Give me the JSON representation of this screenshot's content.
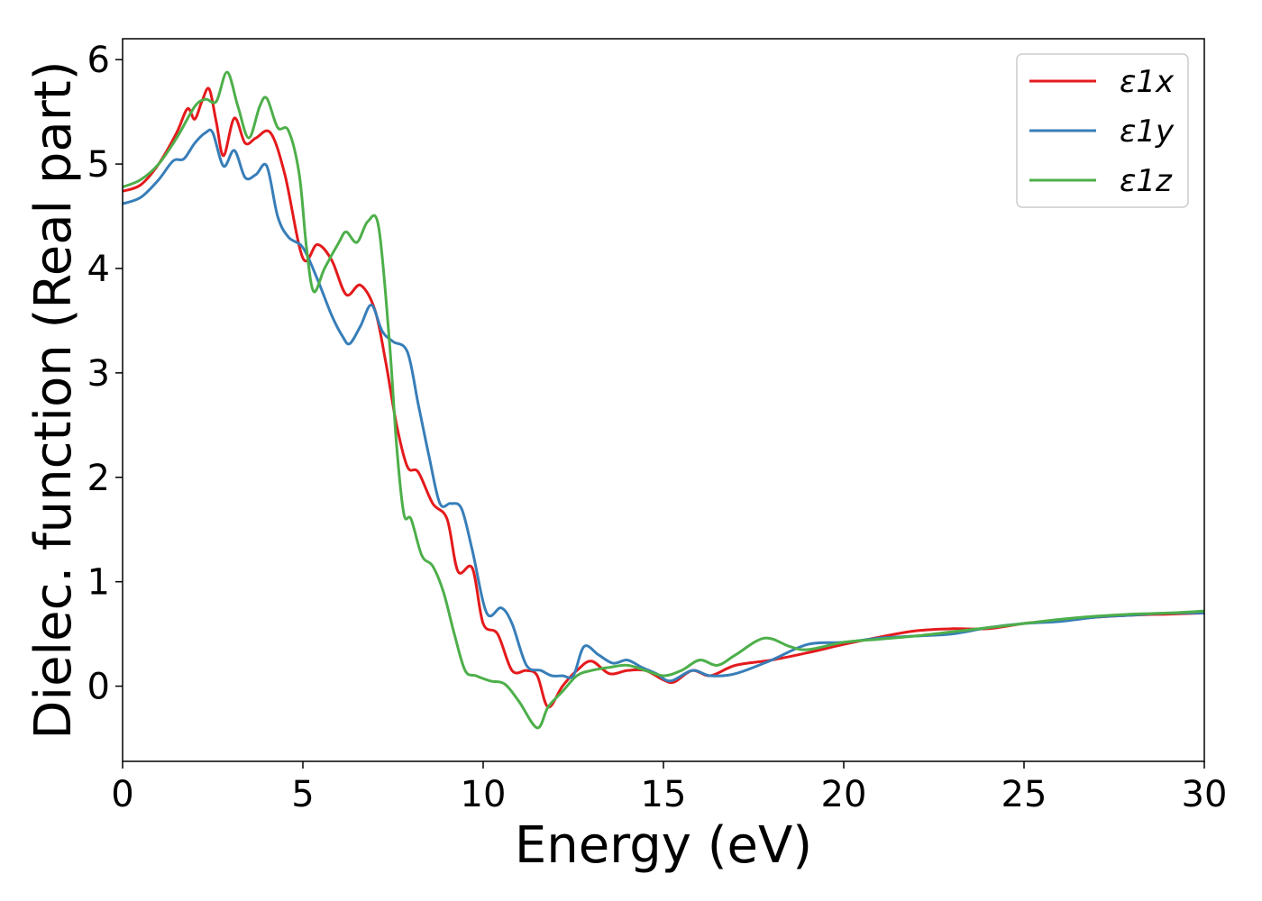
{
  "chart_data": {
    "type": "line",
    "xlabel": "Energy (eV)",
    "ylabel": "Dielec. function (Real part)",
    "xlim": [
      0,
      30
    ],
    "ylim": [
      -0.72,
      6.2
    ],
    "xticks": [
      0,
      5,
      10,
      15,
      20,
      25,
      30
    ],
    "yticks": [
      0,
      1,
      2,
      3,
      4,
      5,
      6
    ],
    "grid": false,
    "legend_position": "top-right",
    "series": [
      {
        "name": "ε1x",
        "color": "#e41a1c",
        "x": [
          0,
          0.5,
          1,
          1.5,
          1.8,
          2.0,
          2.2,
          2.4,
          2.6,
          2.8,
          3.1,
          3.4,
          3.7,
          4.1,
          4.5,
          5.0,
          5.4,
          5.8,
          6.2,
          6.6,
          7.0,
          7.3,
          7.6,
          7.9,
          8.2,
          8.6,
          9.0,
          9.3,
          9.7,
          10.0,
          10.4,
          10.8,
          11.2,
          11.5,
          11.8,
          12.2,
          12.6,
          13.0,
          13.5,
          14.0,
          14.5,
          15.0,
          15.3,
          15.8,
          16.3,
          17.0,
          18.0,
          19.0,
          20.0,
          21.0,
          22.0,
          23.0,
          24.0,
          25.0,
          26.0,
          27.0,
          28.0,
          29.0,
          30.0
        ],
        "y": [
          4.74,
          4.8,
          5.0,
          5.3,
          5.53,
          5.43,
          5.6,
          5.72,
          5.4,
          5.08,
          5.44,
          5.2,
          5.25,
          5.3,
          4.9,
          4.1,
          4.23,
          4.08,
          3.75,
          3.84,
          3.6,
          3.1,
          2.5,
          2.1,
          2.05,
          1.75,
          1.6,
          1.1,
          1.13,
          0.6,
          0.5,
          0.15,
          0.15,
          0.1,
          -0.2,
          0.0,
          0.15,
          0.24,
          0.12,
          0.15,
          0.15,
          0.06,
          0.04,
          0.15,
          0.1,
          0.2,
          0.25,
          0.32,
          0.4,
          0.47,
          0.53,
          0.55,
          0.55,
          0.6,
          0.63,
          0.66,
          0.68,
          0.69,
          0.7
        ]
      },
      {
        "name": "ε1y",
        "color": "#377eb8",
        "x": [
          0,
          0.5,
          1,
          1.4,
          1.7,
          2.0,
          2.3,
          2.5,
          2.8,
          3.1,
          3.4,
          3.7,
          4.0,
          4.3,
          4.6,
          5.0,
          5.4,
          5.8,
          6.1,
          6.3,
          6.6,
          6.9,
          7.2,
          7.5,
          7.9,
          8.2,
          8.5,
          8.8,
          9.1,
          9.4,
          9.7,
          10.1,
          10.5,
          10.8,
          11.2,
          11.6,
          11.9,
          12.2,
          12.5,
          12.8,
          13.2,
          13.6,
          14.0,
          14.4,
          14.8,
          15.2,
          15.8,
          16.3,
          17.0,
          18.0,
          19.0,
          20.0,
          21.0,
          22.0,
          23.0,
          24.0,
          25.0,
          26.0,
          27.0,
          28.0,
          29.0,
          30.0
        ],
        "y": [
          4.62,
          4.68,
          4.85,
          5.03,
          5.05,
          5.2,
          5.3,
          5.3,
          4.98,
          5.13,
          4.87,
          4.9,
          4.98,
          4.5,
          4.3,
          4.2,
          3.9,
          3.55,
          3.35,
          3.28,
          3.45,
          3.65,
          3.4,
          3.3,
          3.2,
          2.7,
          2.2,
          1.75,
          1.75,
          1.7,
          1.3,
          0.7,
          0.75,
          0.6,
          0.2,
          0.15,
          0.1,
          0.1,
          0.1,
          0.38,
          0.3,
          0.22,
          0.25,
          0.18,
          0.12,
          0.05,
          0.15,
          0.1,
          0.12,
          0.25,
          0.4,
          0.42,
          0.46,
          0.48,
          0.5,
          0.56,
          0.6,
          0.62,
          0.66,
          0.68,
          0.7,
          0.7
        ]
      },
      {
        "name": "ε1z",
        "color": "#4daf4a",
        "x": [
          0,
          0.5,
          1,
          1.5,
          2.0,
          2.3,
          2.6,
          2.9,
          3.2,
          3.5,
          3.8,
          4.0,
          4.3,
          4.6,
          4.9,
          5.1,
          5.3,
          5.6,
          6.0,
          6.2,
          6.5,
          6.8,
          7.1,
          7.4,
          7.6,
          7.8,
          8.0,
          8.3,
          8.6,
          8.9,
          9.2,
          9.5,
          9.8,
          10.2,
          10.6,
          11.0,
          11.5,
          11.8,
          12.2,
          12.6,
          13.0,
          13.5,
          14.0,
          14.5,
          15.0,
          15.5,
          16.0,
          16.5,
          17.0,
          17.8,
          18.5,
          19.0,
          20.0,
          21.0,
          22.0,
          23.0,
          24.0,
          25.0,
          26.0,
          27.0,
          28.0,
          29.0,
          30.0
        ],
        "y": [
          4.78,
          4.85,
          5.0,
          5.25,
          5.55,
          5.62,
          5.6,
          5.88,
          5.55,
          5.25,
          5.55,
          5.63,
          5.35,
          5.32,
          4.9,
          4.2,
          3.78,
          4.0,
          4.25,
          4.35,
          4.25,
          4.45,
          4.4,
          3.3,
          2.3,
          1.65,
          1.6,
          1.25,
          1.15,
          0.9,
          0.5,
          0.15,
          0.1,
          0.05,
          0.02,
          -0.15,
          -0.4,
          -0.2,
          -0.05,
          0.1,
          0.15,
          0.18,
          0.2,
          0.15,
          0.1,
          0.15,
          0.25,
          0.2,
          0.3,
          0.46,
          0.38,
          0.35,
          0.42,
          0.45,
          0.48,
          0.52,
          0.56,
          0.6,
          0.64,
          0.67,
          0.69,
          0.7,
          0.72
        ]
      }
    ]
  }
}
